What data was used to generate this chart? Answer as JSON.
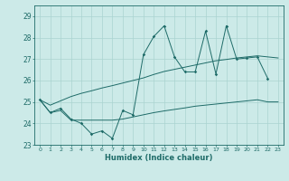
{
  "xlabel": "Humidex (Indice chaleur)",
  "background_color": "#cceae8",
  "grid_color": "#aad4d0",
  "line_color": "#1e6b68",
  "line1_x": [
    0,
    1,
    2,
    3,
    4,
    5,
    6,
    7,
    8,
    9,
    10,
    11,
    12,
    13,
    14,
    15,
    16,
    17,
    18,
    19,
    20,
    21,
    22
  ],
  "line1_y": [
    25.1,
    24.5,
    24.7,
    24.2,
    24.0,
    23.5,
    23.65,
    23.3,
    24.6,
    24.4,
    27.2,
    28.05,
    28.55,
    27.1,
    26.4,
    26.4,
    28.3,
    26.3,
    28.55,
    27.0,
    27.05,
    27.1,
    26.1
  ],
  "line2_x": [
    0,
    1,
    2,
    3,
    4,
    5,
    6,
    7,
    8,
    9,
    10,
    11,
    12,
    13,
    14,
    15,
    16,
    17,
    18,
    19,
    20,
    21,
    22,
    23
  ],
  "line2_y": [
    25.1,
    24.85,
    25.05,
    25.25,
    25.4,
    25.52,
    25.65,
    25.76,
    25.88,
    26.0,
    26.12,
    26.28,
    26.42,
    26.52,
    26.62,
    26.72,
    26.82,
    26.92,
    26.98,
    27.05,
    27.1,
    27.15,
    27.1,
    27.05
  ],
  "line3_x": [
    0,
    1,
    2,
    3,
    4,
    5,
    6,
    7,
    8,
    9,
    10,
    11,
    12,
    13,
    14,
    15,
    16,
    17,
    18,
    19,
    20,
    21,
    22,
    23
  ],
  "line3_y": [
    25.1,
    24.5,
    24.6,
    24.15,
    24.15,
    24.15,
    24.15,
    24.15,
    24.2,
    24.3,
    24.4,
    24.5,
    24.58,
    24.65,
    24.72,
    24.8,
    24.85,
    24.9,
    24.95,
    25.0,
    25.05,
    25.1,
    25.0,
    25.0
  ],
  "ylim": [
    23.0,
    29.5
  ],
  "xlim": [
    -0.5,
    23.5
  ],
  "yticks": [
    23,
    24,
    25,
    26,
    27,
    28,
    29
  ],
  "xticks": [
    0,
    1,
    2,
    3,
    4,
    5,
    6,
    7,
    8,
    9,
    10,
    11,
    12,
    13,
    14,
    15,
    16,
    17,
    18,
    19,
    20,
    21,
    22,
    23
  ]
}
